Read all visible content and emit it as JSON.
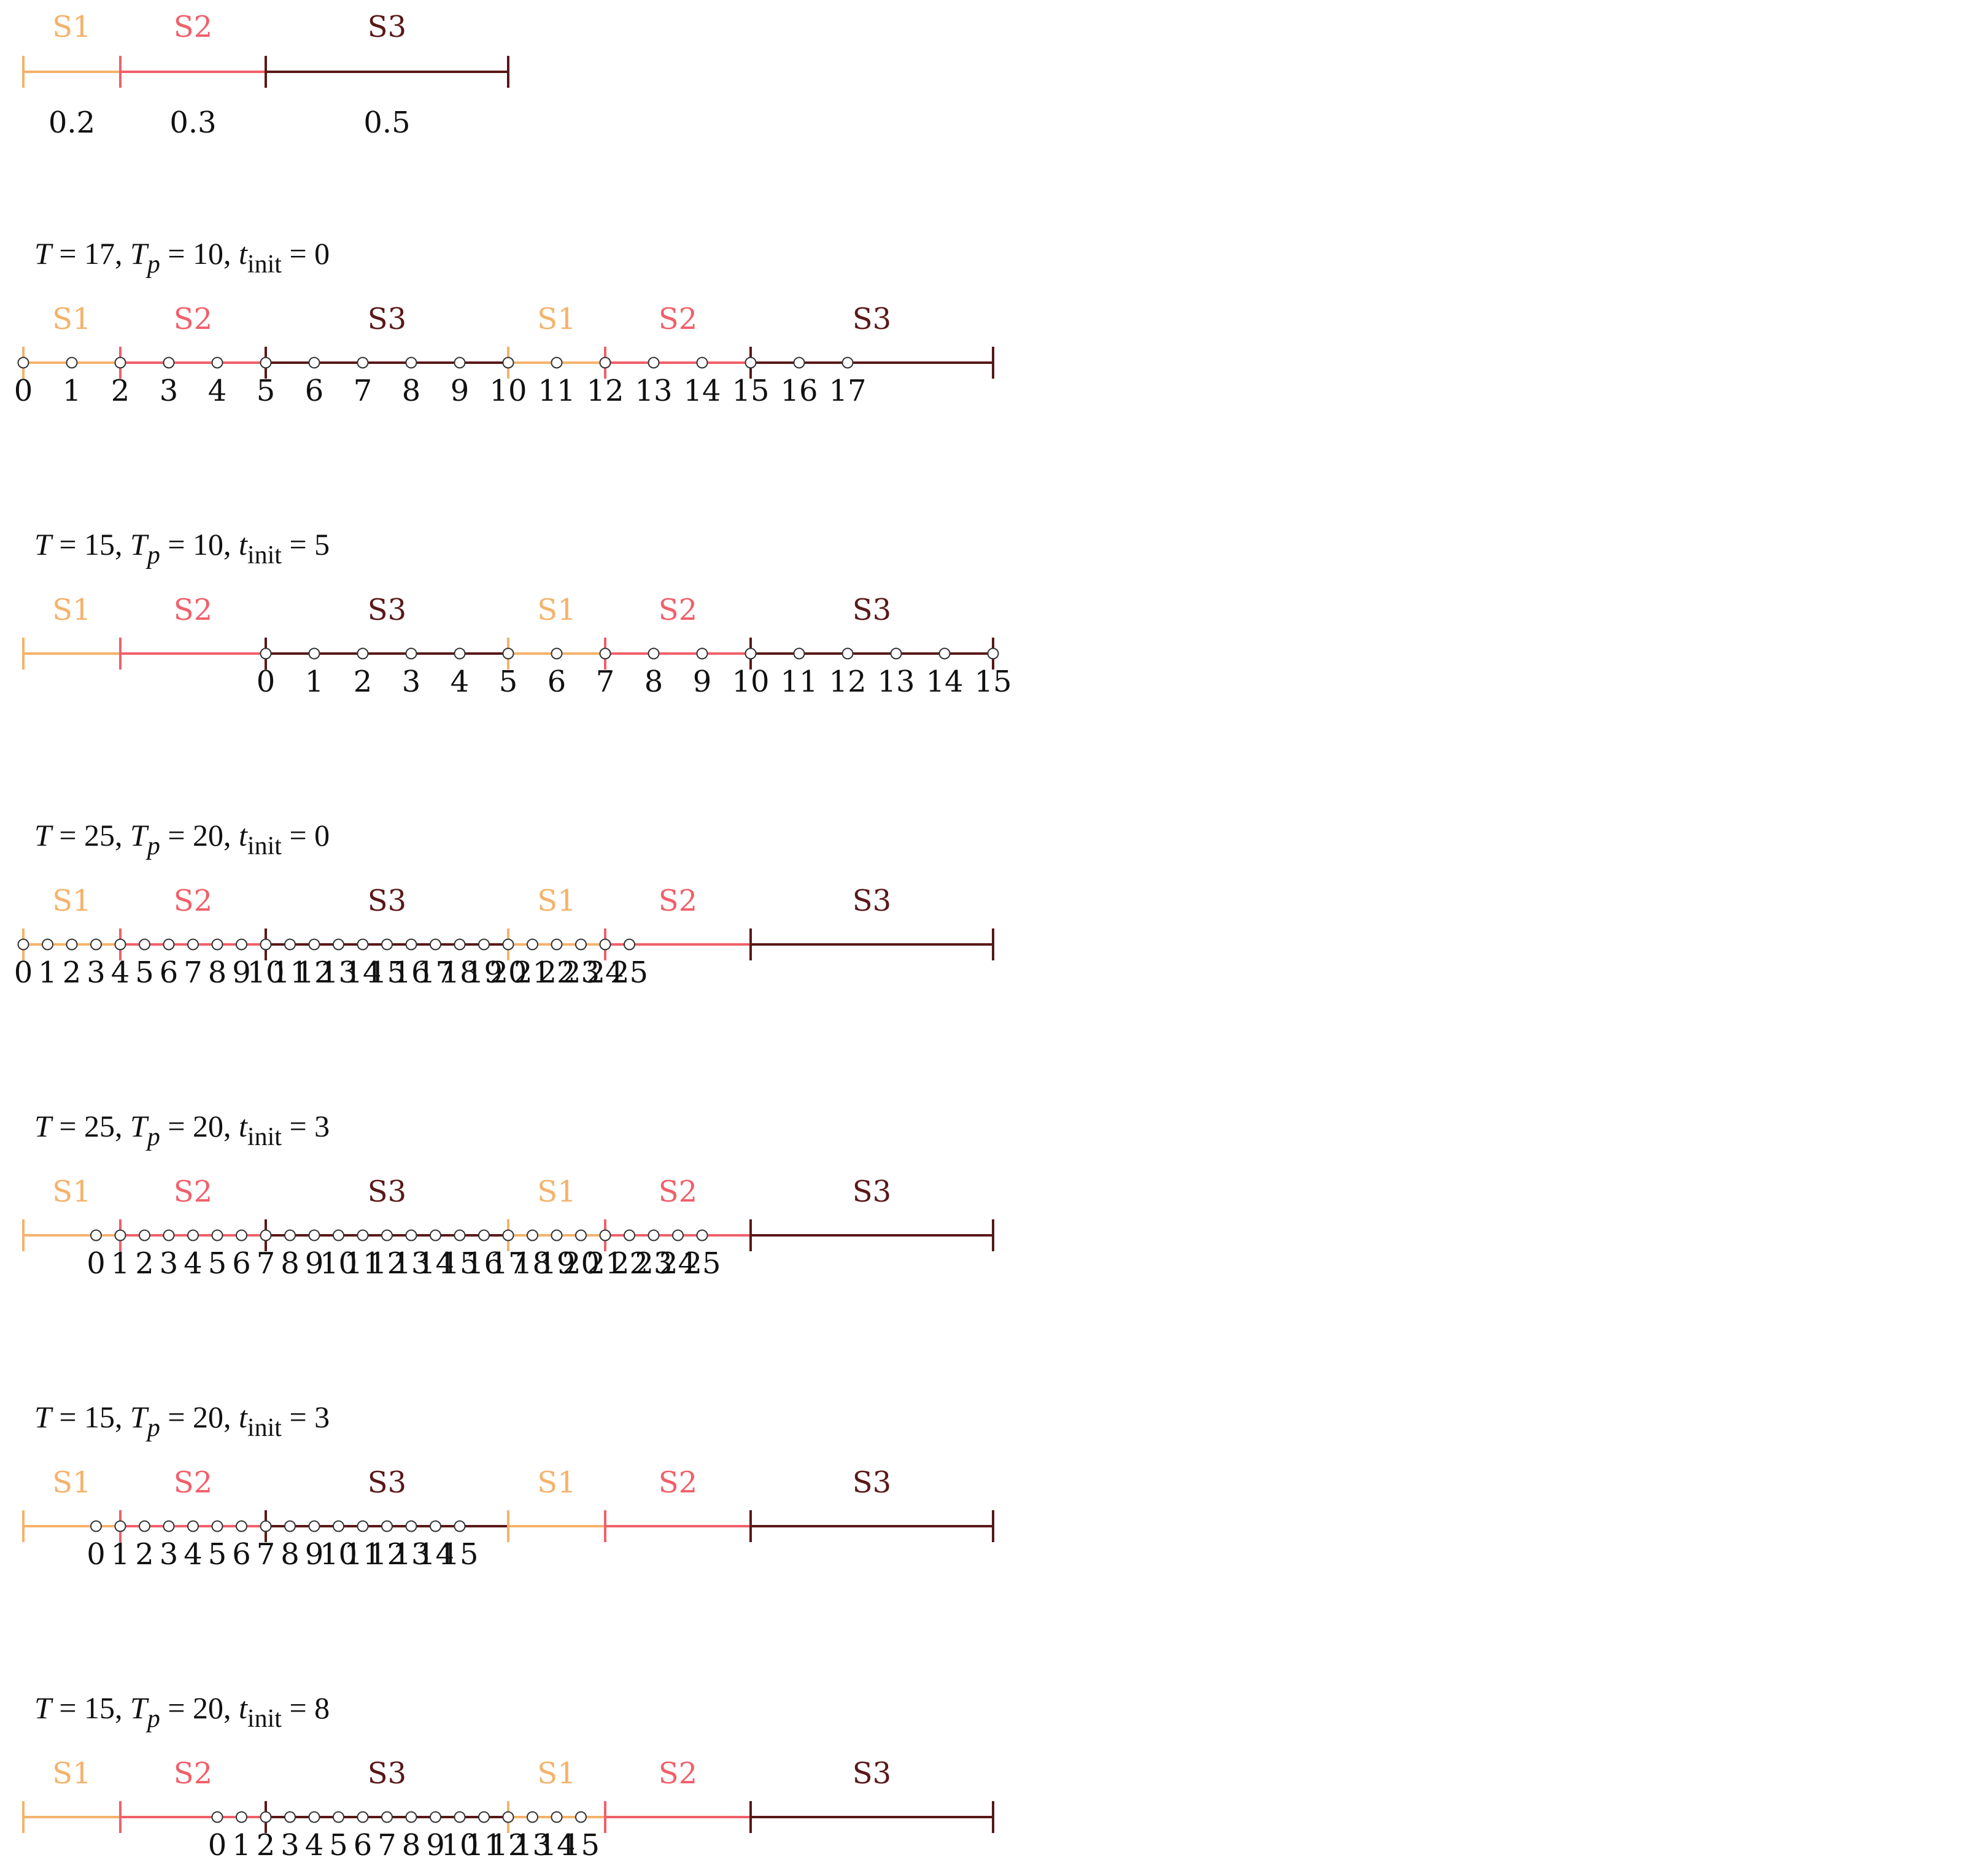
{
  "colors": {
    "S1": "#f5b26b",
    "S2": "#f0606a",
    "S3": "#5a1818",
    "point_fill": "#ffffff",
    "point_stroke": "#333333"
  },
  "segments": [
    {
      "name": "S1",
      "proportion": "0.2"
    },
    {
      "name": "S2",
      "proportion": "0.3"
    },
    {
      "name": "S3",
      "proportion": "0.5"
    }
  ],
  "rows": [
    {
      "caption": {
        "T": "17",
        "Tp": "10",
        "tinit": "0"
      },
      "cycles": 2,
      "points": {
        "unit": 0.5,
        "start": 0.0,
        "count": 18
      },
      "labels": [
        "0",
        "1",
        "2",
        "3",
        "4",
        "5",
        "6",
        "7",
        "8",
        "9",
        "10",
        "11",
        "12",
        "13",
        "14",
        "15",
        "16",
        "17"
      ]
    },
    {
      "caption": {
        "T": "15",
        "Tp": "10",
        "tinit": "5"
      },
      "cycles": 2,
      "points": {
        "unit": 0.5,
        "start": 2.5,
        "count": 16
      },
      "labels": [
        "0",
        "1",
        "2",
        "3",
        "4",
        "5",
        "6",
        "7",
        "8",
        "9",
        "10",
        "11",
        "12",
        "13",
        "14",
        "15"
      ]
    },
    {
      "caption": {
        "T": "25",
        "Tp": "20",
        "tinit": "0"
      },
      "cycles": 2,
      "points": {
        "unit": 0.25,
        "start": 0.0,
        "count": 26
      },
      "labels": [
        "0",
        "1",
        "2",
        "3",
        "4",
        "5",
        "6",
        "7",
        "8",
        "9",
        "10",
        "11",
        "12",
        "13",
        "14",
        "15",
        "16",
        "17",
        "18",
        "19",
        "20",
        "21",
        "22",
        "23",
        "24",
        "25"
      ]
    },
    {
      "caption": {
        "T": "25",
        "Tp": "20",
        "tinit": "3"
      },
      "cycles": 2,
      "points": {
        "unit": 0.25,
        "start": 0.75,
        "count": 26
      },
      "labels": [
        "0",
        "1",
        "2",
        "3",
        "4",
        "5",
        "6",
        "7",
        "8",
        "9",
        "10",
        "11",
        "12",
        "13",
        "14",
        "15",
        "16",
        "17",
        "18",
        "19",
        "20",
        "21",
        "22",
        "23",
        "24",
        "25"
      ]
    },
    {
      "caption": {
        "T": "15",
        "Tp": "20",
        "tinit": "3"
      },
      "cycles": 2,
      "points": {
        "unit": 0.25,
        "start": 0.75,
        "count": 16
      },
      "labels": [
        "0",
        "1",
        "2",
        "3",
        "4",
        "5",
        "6",
        "7",
        "8",
        "9",
        "10",
        "11",
        "12",
        "13",
        "14",
        "15"
      ]
    },
    {
      "caption": {
        "T": "15",
        "Tp": "20",
        "tinit": "8"
      },
      "cycles": 2,
      "points": {
        "unit": 0.25,
        "start": 2.0,
        "count": 16
      },
      "labels": [
        "0",
        "1",
        "2",
        "3",
        "4",
        "5",
        "6",
        "7",
        "8",
        "9",
        "10",
        "11",
        "12",
        "13",
        "14",
        "15"
      ]
    }
  ]
}
